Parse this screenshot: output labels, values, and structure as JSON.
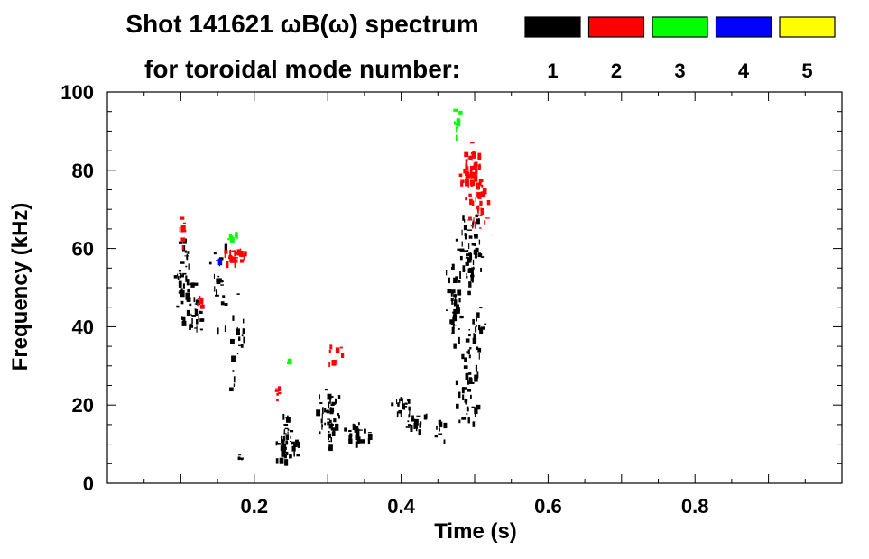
{
  "chart_data": {
    "type": "heatmap",
    "title_line1": "Shot 141621 ωB(ω) spectrum",
    "title_line2": "for toroidal mode number:",
    "xlabel": "Time (s)",
    "ylabel": "Frequency (kHz)",
    "xlim": [
      0.0,
      1.0
    ],
    "ylim": [
      0,
      100
    ],
    "xticks": [
      "0.2",
      "0.4",
      "0.6",
      "0.8"
    ],
    "xtick_values": [
      0.2,
      0.4,
      0.6,
      0.8
    ],
    "yticks": [
      "0",
      "20",
      "40",
      "60",
      "80",
      "100"
    ],
    "ytick_values": [
      0,
      20,
      40,
      60,
      80,
      100
    ],
    "legend_position": "top-right",
    "mode_legend": [
      {
        "label": "1",
        "color": "#000000"
      },
      {
        "label": "2",
        "color": "#ff0000"
      },
      {
        "label": "3",
        "color": "#00ff00"
      },
      {
        "label": "4",
        "color": "#0000ff"
      },
      {
        "label": "5",
        "color": "#ffff00"
      }
    ],
    "regions": [
      {
        "mode": 1,
        "t": 0.1,
        "f": 52,
        "dt": 0.012,
        "df": 14,
        "n": 40
      },
      {
        "mode": 1,
        "t": 0.12,
        "f": 44,
        "dt": 0.01,
        "df": 10,
        "n": 25
      },
      {
        "mode": 1,
        "t": 0.15,
        "f": 50,
        "dt": 0.012,
        "df": 12,
        "n": 20
      },
      {
        "mode": 1,
        "t": 0.175,
        "f": 35,
        "dt": 0.02,
        "df": 20,
        "n": 20
      },
      {
        "mode": 1,
        "t": 0.24,
        "f": 12,
        "dt": 0.012,
        "df": 7,
        "n": 40
      },
      {
        "mode": 1,
        "t": 0.255,
        "f": 9,
        "dt": 0.01,
        "df": 3,
        "n": 10
      },
      {
        "mode": 1,
        "t": 0.3,
        "f": 17,
        "dt": 0.018,
        "df": 8,
        "n": 50
      },
      {
        "mode": 1,
        "t": 0.34,
        "f": 13,
        "dt": 0.02,
        "df": 3,
        "n": 25
      },
      {
        "mode": 1,
        "t": 0.4,
        "f": 20,
        "dt": 0.018,
        "df": 3,
        "n": 20
      },
      {
        "mode": 1,
        "t": 0.42,
        "f": 16,
        "dt": 0.018,
        "df": 3,
        "n": 15
      },
      {
        "mode": 1,
        "t": 0.45,
        "f": 14,
        "dt": 0.01,
        "df": 3,
        "n": 8
      },
      {
        "mode": 1,
        "t": 0.18,
        "f": 6,
        "dt": 0.004,
        "df": 2,
        "n": 4
      },
      {
        "mode": 1,
        "t": 0.47,
        "f": 46,
        "dt": 0.01,
        "df": 12,
        "n": 40
      },
      {
        "mode": 1,
        "t": 0.49,
        "f": 58,
        "dt": 0.02,
        "df": 12,
        "n": 60
      },
      {
        "mode": 1,
        "t": 0.49,
        "f": 24,
        "dt": 0.018,
        "df": 14,
        "n": 35
      },
      {
        "mode": 1,
        "t": 0.5,
        "f": 38,
        "dt": 0.015,
        "df": 14,
        "n": 25
      },
      {
        "mode": 2,
        "t": 0.1,
        "f": 65,
        "dt": 0.004,
        "df": 7,
        "n": 8
      },
      {
        "mode": 2,
        "t": 0.125,
        "f": 47,
        "dt": 0.005,
        "df": 2,
        "n": 10
      },
      {
        "mode": 2,
        "t": 0.17,
        "f": 59,
        "dt": 0.018,
        "df": 3,
        "n": 25
      },
      {
        "mode": 2,
        "t": 0.23,
        "f": 23,
        "dt": 0.004,
        "df": 3,
        "n": 6
      },
      {
        "mode": 2,
        "t": 0.31,
        "f": 33,
        "dt": 0.012,
        "df": 3,
        "n": 8
      },
      {
        "mode": 2,
        "t": 0.495,
        "f": 80,
        "dt": 0.02,
        "df": 9,
        "n": 60
      },
      {
        "mode": 2,
        "t": 0.505,
        "f": 71,
        "dt": 0.015,
        "df": 6,
        "n": 20
      },
      {
        "mode": 3,
        "t": 0.17,
        "f": 63,
        "dt": 0.008,
        "df": 1.5,
        "n": 6
      },
      {
        "mode": 3,
        "t": 0.245,
        "f": 31,
        "dt": 0.003,
        "df": 2,
        "n": 3
      },
      {
        "mode": 3,
        "t": 0.475,
        "f": 93,
        "dt": 0.006,
        "df": 5,
        "n": 10
      },
      {
        "mode": 4,
        "t": 0.15,
        "f": 57,
        "dt": 0.003,
        "df": 1,
        "n": 3
      }
    ]
  }
}
